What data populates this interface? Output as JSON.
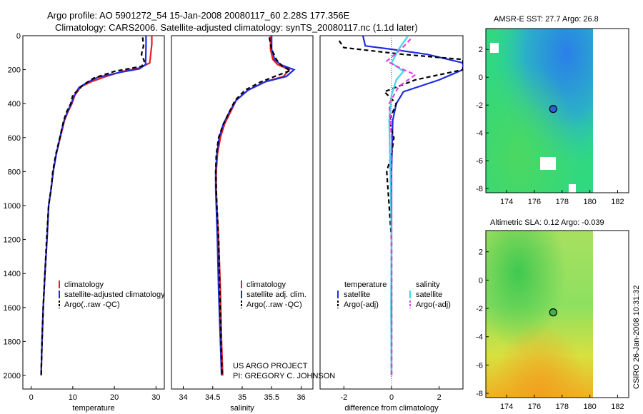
{
  "figure": {
    "title_line1": "Argo profile: AO 5901272_54 15-Jan-2008 20080117_60 2.28S 177.356E",
    "title_line2": "Climatology: CARS2006. Satellite-adjusted climatology: synTS_20080117.nc (1.1d later)",
    "credit_line1": "US ARGO PROJECT",
    "credit_line2": "PI: GREGORY C. JOHNSON",
    "timestamp": "CSIRO 26-Jan-2008 10:31:32"
  },
  "colors": {
    "climatology": "#e8201c",
    "satellite": "#1f2ce0",
    "argo": "#000000",
    "sat_salinity": "#3ed6e6",
    "argo_salinity": "#e040e0"
  },
  "chart_data": [
    {
      "id": "temperature",
      "type": "line",
      "xlabel": "temperature",
      "ylabel": "",
      "xlim": [
        -2,
        32
      ],
      "ylim": [
        2080,
        0
      ],
      "y_inverted": true,
      "xticks": [
        0,
        10,
        20,
        30
      ],
      "yticks": [
        0,
        200,
        400,
        600,
        800,
        1000,
        1200,
        1400,
        1600,
        1800,
        2000
      ],
      "legend": [
        "climatology",
        "satellite-adjusted climatology",
        "Argo(..raw -QC)"
      ],
      "series": [
        {
          "name": "climatology",
          "color": "#e8201c",
          "dash": "",
          "x": [
            29.0,
            29.0,
            28.5,
            26.0,
            22.0,
            18.0,
            14.5,
            12.0,
            10.5,
            9.8,
            8.8,
            8.0,
            7.0,
            6.0,
            5.3,
            4.8,
            4.2,
            3.8,
            3.3,
            2.9,
            2.6,
            2.4
          ],
          "y": [
            0,
            50,
            160,
            190,
            210,
            240,
            270,
            300,
            350,
            400,
            450,
            500,
            600,
            700,
            800,
            900,
            1000,
            1200,
            1400,
            1600,
            1800,
            2000
          ]
        },
        {
          "name": "satellite-adjusted climatology",
          "color": "#1f2ce0",
          "dash": "",
          "x": [
            27.6,
            27.6,
            27.5,
            26.0,
            21.5,
            16.0,
            13.5,
            11.5,
            10.3,
            9.6,
            8.7,
            7.9,
            6.9,
            6.0,
            5.3,
            4.8,
            4.2,
            3.8,
            3.3,
            2.9,
            2.6,
            2.4
          ],
          "y": [
            0,
            60,
            170,
            195,
            215,
            245,
            275,
            305,
            355,
            400,
            450,
            500,
            600,
            700,
            800,
            900,
            1000,
            1200,
            1400,
            1600,
            1800,
            2000
          ]
        },
        {
          "name": "Argo(..raw -QC)",
          "color": "#000000",
          "dash": "6,4",
          "x": [
            26.8,
            27.0,
            26.5,
            27.2,
            26.6,
            20.0,
            15.0,
            12.5,
            10.0,
            9.5,
            8.5,
            7.8,
            6.9,
            5.9,
            5.2,
            4.8,
            4.2,
            3.7,
            3.3,
            2.9,
            2.6,
            2.4
          ],
          "y": [
            10,
            60,
            110,
            150,
            180,
            210,
            250,
            290,
            350,
            400,
            450,
            500,
            600,
            700,
            800,
            900,
            1000,
            1200,
            1400,
            1600,
            1800,
            2000
          ]
        }
      ]
    },
    {
      "id": "salinity",
      "type": "line",
      "xlabel": "salinity",
      "ylabel": "",
      "xlim": [
        33.8,
        36.2
      ],
      "ylim": [
        2080,
        0
      ],
      "y_inverted": true,
      "xticks": [
        34,
        34.5,
        35,
        35.5,
        36
      ],
      "yticks": [],
      "legend": [
        "climatology",
        "satellite adj. clim.",
        "Argo(..raw -QC)"
      ],
      "series": [
        {
          "name": "climatology",
          "color": "#e8201c",
          "dash": "",
          "x": [
            35.48,
            35.48,
            35.52,
            35.6,
            35.8,
            35.7,
            35.4,
            35.1,
            34.9,
            34.8,
            34.7,
            34.63,
            34.58,
            34.56,
            34.56,
            34.57,
            34.6,
            34.63,
            34.65,
            34.67
          ],
          "y": [
            0,
            80,
            140,
            170,
            200,
            240,
            270,
            320,
            380,
            450,
            520,
            600,
            700,
            800,
            900,
            1000,
            1200,
            1500,
            1800,
            2000
          ]
        },
        {
          "name": "satellite adj. clim.",
          "color": "#1f2ce0",
          "dash": "",
          "x": [
            35.5,
            35.5,
            35.55,
            35.65,
            35.88,
            35.75,
            35.4,
            35.1,
            34.9,
            34.78,
            34.68,
            34.61,
            34.57,
            34.55,
            34.55,
            34.56,
            34.58,
            34.6,
            34.63,
            34.65
          ],
          "y": [
            0,
            80,
            140,
            170,
            200,
            240,
            270,
            320,
            380,
            450,
            520,
            600,
            700,
            800,
            900,
            1000,
            1200,
            1500,
            1800,
            2000
          ]
        },
        {
          "name": "Argo(..raw -QC)",
          "color": "#000000",
          "dash": "6,4",
          "x": [
            35.46,
            35.5,
            35.58,
            35.68,
            35.82,
            35.55,
            35.3,
            35.05,
            34.88,
            34.78,
            34.68,
            34.6,
            34.56,
            34.55,
            34.56,
            34.57,
            34.6,
            34.62,
            34.64,
            34.66
          ],
          "y": [
            10,
            80,
            140,
            180,
            205,
            240,
            275,
            320,
            380,
            450,
            520,
            600,
            700,
            800,
            900,
            1000,
            1200,
            1500,
            1800,
            2000
          ]
        }
      ]
    },
    {
      "id": "difference",
      "type": "line",
      "xlabel": "difference from climatology",
      "ylabel": "",
      "xlim": [
        -3.0,
        3.0
      ],
      "ylim": [
        2080,
        0
      ],
      "y_inverted": true,
      "xticks": [
        -2,
        0,
        2
      ],
      "yticks": [],
      "legend_title_left": "temperature",
      "legend_title_right": "salinity",
      "legend": [
        "satellite",
        "Argo(-adj)",
        "satellite",
        "Argo(-adj)"
      ],
      "series": [
        {
          "name": "temperature satellite",
          "color": "#1f2ce0",
          "dash": "",
          "x": [
            -1.2,
            -1.1,
            0.0,
            1.5,
            3.0,
            3.0,
            2.0,
            0.5,
            0.2,
            0.05,
            0.0,
            0.0,
            0.0,
            0.0
          ],
          "y": [
            0,
            60,
            80,
            110,
            160,
            200,
            260,
            330,
            400,
            500,
            800,
            1200,
            1600,
            2000
          ]
        },
        {
          "name": "temperature Argo(-adj)",
          "color": "#000000",
          "dash": "6,4",
          "x": [
            -2.2,
            -2.0,
            0.5,
            3.0,
            3.0,
            1.0,
            -0.3,
            0.2,
            -0.1,
            0.1,
            0.0,
            -0.2,
            0.0,
            0.0,
            0.0
          ],
          "y": [
            30,
            70,
            110,
            140,
            200,
            260,
            330,
            400,
            500,
            600,
            700,
            800,
            1200,
            1600,
            2000
          ]
        },
        {
          "name": "salinity satellite",
          "color": "#3ed6e6",
          "dash": "",
          "x": [
            0.7,
            0.3,
            0.0,
            0.5,
            0.2,
            0.0,
            -0.1,
            -0.05,
            0.0,
            -0.02,
            0.0
          ],
          "y": [
            0,
            80,
            160,
            210,
            260,
            350,
            500,
            800,
            1200,
            1600,
            2000
          ]
        },
        {
          "name": "salinity Argo(-adj)",
          "color": "#e040e0",
          "dash": "6,4",
          "x": [
            0.8,
            0.4,
            -0.2,
            0.5,
            1.0,
            0.3,
            -0.1,
            0.0,
            0.0,
            0.0
          ],
          "y": [
            20,
            80,
            150,
            200,
            230,
            300,
            400,
            600,
            1000,
            2000
          ]
        }
      ]
    },
    {
      "id": "sst-map",
      "type": "heatmap",
      "title": "AMSR-E SST: 27.7 Argo: 26.8",
      "xlim": [
        172.5,
        182.8
      ],
      "ylim": [
        -8.3,
        3.5
      ],
      "xticks": [
        174,
        176,
        178,
        180,
        182
      ],
      "yticks": [
        2,
        0,
        -2,
        -4,
        -6,
        -8
      ],
      "data_extent_x": [
        172.5,
        180.0
      ],
      "argo_marker": {
        "lon": 177.356,
        "lat": -2.28
      }
    },
    {
      "id": "sla-map",
      "type": "heatmap",
      "title": "Altimetric SLA: 0.12 Argo: -0.039",
      "xlim": [
        172.5,
        182.8
      ],
      "ylim": [
        -8.3,
        3.5
      ],
      "xticks": [
        174,
        176,
        178,
        180,
        182
      ],
      "yticks": [
        2,
        0,
        -2,
        -4,
        -6,
        -8
      ],
      "data_extent_x": [
        172.5,
        180.0
      ],
      "argo_marker": {
        "lon": 177.356,
        "lat": -2.28
      }
    }
  ]
}
